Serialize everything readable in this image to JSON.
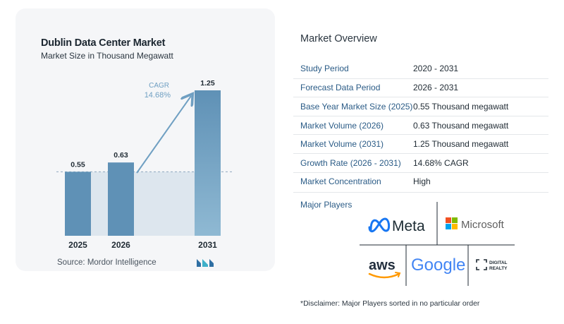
{
  "chart_data": {
    "type": "bar",
    "title": "Dublin Data Center Market",
    "subtitle": "Market Size in Thousand Megawatt",
    "categories": [
      "2025",
      "2026",
      "2031"
    ],
    "values": [
      0.55,
      0.63,
      1.25
    ],
    "value_labels": [
      "0.55",
      "0.63",
      "1.25"
    ],
    "cagr_label": "CAGR",
    "cagr_value": "14.68%",
    "ylim": [
      0,
      1.25
    ],
    "grid": false,
    "bar_color": "#5f91b6",
    "bar_color_light": "#8fb9d3",
    "baseline_fill": "#dde6ee",
    "arrow_color": "#6f9fc2"
  },
  "source": "Source:  Mordor Intelligence",
  "overview": {
    "title": "Market Overview",
    "rows": [
      {
        "key": "Study Period",
        "value": "2020 - 2031"
      },
      {
        "key": "Forecast Data Period",
        "value": "2026 - 2031"
      },
      {
        "key": "Base Year Market Size (2025)",
        "value": "0.55 Thousand megawatt"
      },
      {
        "key": "Market Volume (2026)",
        "value": "0.63 Thousand megawatt"
      },
      {
        "key": "Market Volume (2031)",
        "value": "1.25 Thousand megawatt"
      },
      {
        "key": "Growth Rate (2026 - 2031)",
        "value": "14.68% CAGR"
      },
      {
        "key": "Market Concentration",
        "value": "High"
      }
    ]
  },
  "players": {
    "title": "Major Players",
    "logos": {
      "meta": "Meta",
      "microsoft": "Microsoft",
      "aws": "aws",
      "google": "Google",
      "digital_realty_1": "DIGITAL",
      "digital_realty_2": "REALTY"
    }
  },
  "disclaimer": "*Disclaimer: Major Players sorted in no particular order"
}
